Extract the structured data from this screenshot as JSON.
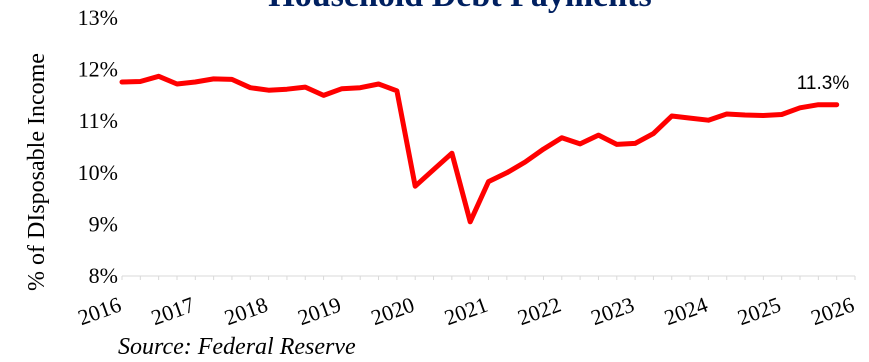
{
  "chart_data": {
    "type": "line",
    "title": "Household Debt Payments",
    "ylabel": "% of DIsposable Income",
    "source": "Source: Federal Reserve",
    "annotation": "11.3%",
    "y_ticks": [
      "8%",
      "9%",
      "10%",
      "11%",
      "12%",
      "13%"
    ],
    "ylim": [
      8,
      13
    ],
    "x_ticks": [
      "2016",
      "2017",
      "2018",
      "2019",
      "2020",
      "2021",
      "2022",
      "2023",
      "2024",
      "2025",
      "2026"
    ],
    "xlim": [
      2016,
      2026
    ],
    "grid": false,
    "color": "#ff0000",
    "series": [
      {
        "x": [
          2016.0,
          2016.25,
          2016.5,
          2016.75,
          2017.0,
          2017.25,
          2017.5,
          2017.75,
          2018.0,
          2018.25,
          2018.5,
          2018.75,
          2019.0,
          2019.25,
          2019.5,
          2019.75,
          2020.0,
          2020.25,
          2020.5,
          2020.75,
          2021.0,
          2021.25,
          2021.5,
          2021.75,
          2022.0,
          2022.25,
          2022.5,
          2022.75,
          2023.0,
          2023.25,
          2023.5,
          2023.75,
          2024.0,
          2024.25,
          2024.5,
          2024.75,
          2025.0,
          2025.25,
          2025.5,
          2025.75
        ],
        "values": [
          11.76,
          11.77,
          11.87,
          11.72,
          11.76,
          11.82,
          11.81,
          11.65,
          11.6,
          11.62,
          11.66,
          11.5,
          11.63,
          11.65,
          11.72,
          11.59,
          9.74,
          10.06,
          10.38,
          9.05,
          9.83,
          10.0,
          10.21,
          10.46,
          10.68,
          10.56,
          10.73,
          10.55,
          10.57,
          10.76,
          11.1,
          11.06,
          11.02,
          11.14,
          11.12,
          11.11,
          11.13,
          11.26,
          11.32,
          11.32
        ]
      }
    ]
  }
}
